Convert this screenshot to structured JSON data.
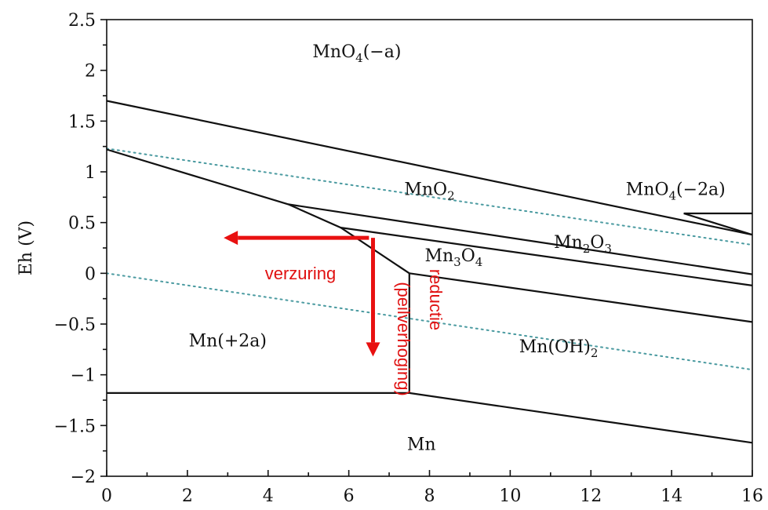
{
  "chart_data": {
    "type": "line",
    "title": "",
    "xlabel": "",
    "ylabel": "Eh (V)",
    "xlim": [
      0,
      16
    ],
    "ylim": [
      -2,
      2.5
    ],
    "x_ticks": [
      0,
      2,
      4,
      6,
      8,
      10,
      12,
      14,
      16
    ],
    "y_ticks": [
      2.5,
      2,
      1.5,
      1,
      0.5,
      0,
      -0.5,
      -1,
      -1.5,
      -2
    ],
    "y_tick_labels": [
      "2.5",
      "2",
      "1.5",
      "1",
      "0.5",
      "0",
      "−0.5",
      "−1",
      "−1.5",
      "−2"
    ],
    "grid": false,
    "boundaries": [
      {
        "id": "mno4a-mno2",
        "points": [
          [
            0,
            1.7
          ],
          [
            16,
            0.38
          ]
        ]
      },
      {
        "id": "mno4-2a-vertical-top",
        "points": [
          [
            14.3,
            0.59
          ],
          [
            16,
            0.59
          ]
        ]
      },
      {
        "id": "mno4-2a-diag",
        "points": [
          [
            14.3,
            0.59
          ],
          [
            16,
            0.38
          ]
        ]
      },
      {
        "id": "mn2a-oxides",
        "points": [
          [
            0,
            1.22
          ],
          [
            4.5,
            0.68
          ],
          [
            5.8,
            0.45
          ],
          [
            7.5,
            0.0
          ]
        ]
      },
      {
        "id": "mno2-mn2o3",
        "points": [
          [
            4.5,
            0.68
          ],
          [
            16,
            -0.01
          ]
        ]
      },
      {
        "id": "mn2o3-mn3o4",
        "points": [
          [
            5.8,
            0.45
          ],
          [
            16,
            -0.12
          ]
        ]
      },
      {
        "id": "mn3o4-mnoh2",
        "points": [
          [
            7.5,
            0.0
          ],
          [
            16,
            -0.48
          ]
        ]
      },
      {
        "id": "mn2a-mnoh2-vertical",
        "points": [
          [
            7.5,
            0.0
          ],
          [
            7.5,
            -1.18
          ]
        ]
      },
      {
        "id": "mn2a-mn",
        "points": [
          [
            0,
            -1.18
          ],
          [
            7.5,
            -1.18
          ]
        ]
      },
      {
        "id": "mnoh2-mn",
        "points": [
          [
            7.5,
            -1.18
          ],
          [
            16,
            -1.67
          ]
        ]
      }
    ],
    "water_lines": [
      {
        "id": "o2-h2o",
        "points": [
          [
            0,
            1.23
          ],
          [
            16,
            0.28
          ]
        ]
      },
      {
        "id": "h2o-h2",
        "points": [
          [
            0,
            0.0
          ],
          [
            16,
            -0.95
          ]
        ]
      }
    ],
    "region_labels": [
      {
        "base": "MnO",
        "sub": "4",
        "rest": "(−a)",
        "x": 6.2,
        "y": 2.13
      },
      {
        "base": "MnO",
        "sub": "4",
        "rest": "(−2a)",
        "x": 14.1,
        "y": 0.77
      },
      {
        "base": "MnO",
        "sub": "2",
        "rest": "",
        "x": 8.0,
        "y": 0.77
      },
      {
        "base": "Mn",
        "sub": "2",
        "rest": "O",
        "sub2": "3",
        "x": 11.8,
        "y": 0.25
      },
      {
        "base": "Mn",
        "sub": "3",
        "rest": "O",
        "sub2": "4",
        "x": 8.6,
        "y": 0.12
      },
      {
        "base": "Mn(+2a)",
        "sub": "",
        "rest": "",
        "x": 3.0,
        "y": -0.72
      },
      {
        "base": "Mn(OH)",
        "sub": "2",
        "rest": "",
        "x": 11.2,
        "y": -0.78
      },
      {
        "base": "Mn",
        "sub": "",
        "rest": "",
        "x": 7.8,
        "y": -1.74
      }
    ],
    "annotations": [
      {
        "id": "verzuring-arrow",
        "from": [
          6.5,
          0.35
        ],
        "to": [
          2.9,
          0.35
        ],
        "label": "verzuring"
      },
      {
        "id": "reductie-arrow",
        "from": [
          6.6,
          0.35
        ],
        "to": [
          6.6,
          -0.82
        ],
        "label": "reductie (peilverhoging)"
      }
    ],
    "annotation_text": {
      "verzuring": "verzuring",
      "reductie": "reductie",
      "peilverhoging": "(peilverhoging)"
    },
    "colors": {
      "boundary": "#111111",
      "water": "#4a9aa0",
      "arrow": "#e81010"
    }
  }
}
